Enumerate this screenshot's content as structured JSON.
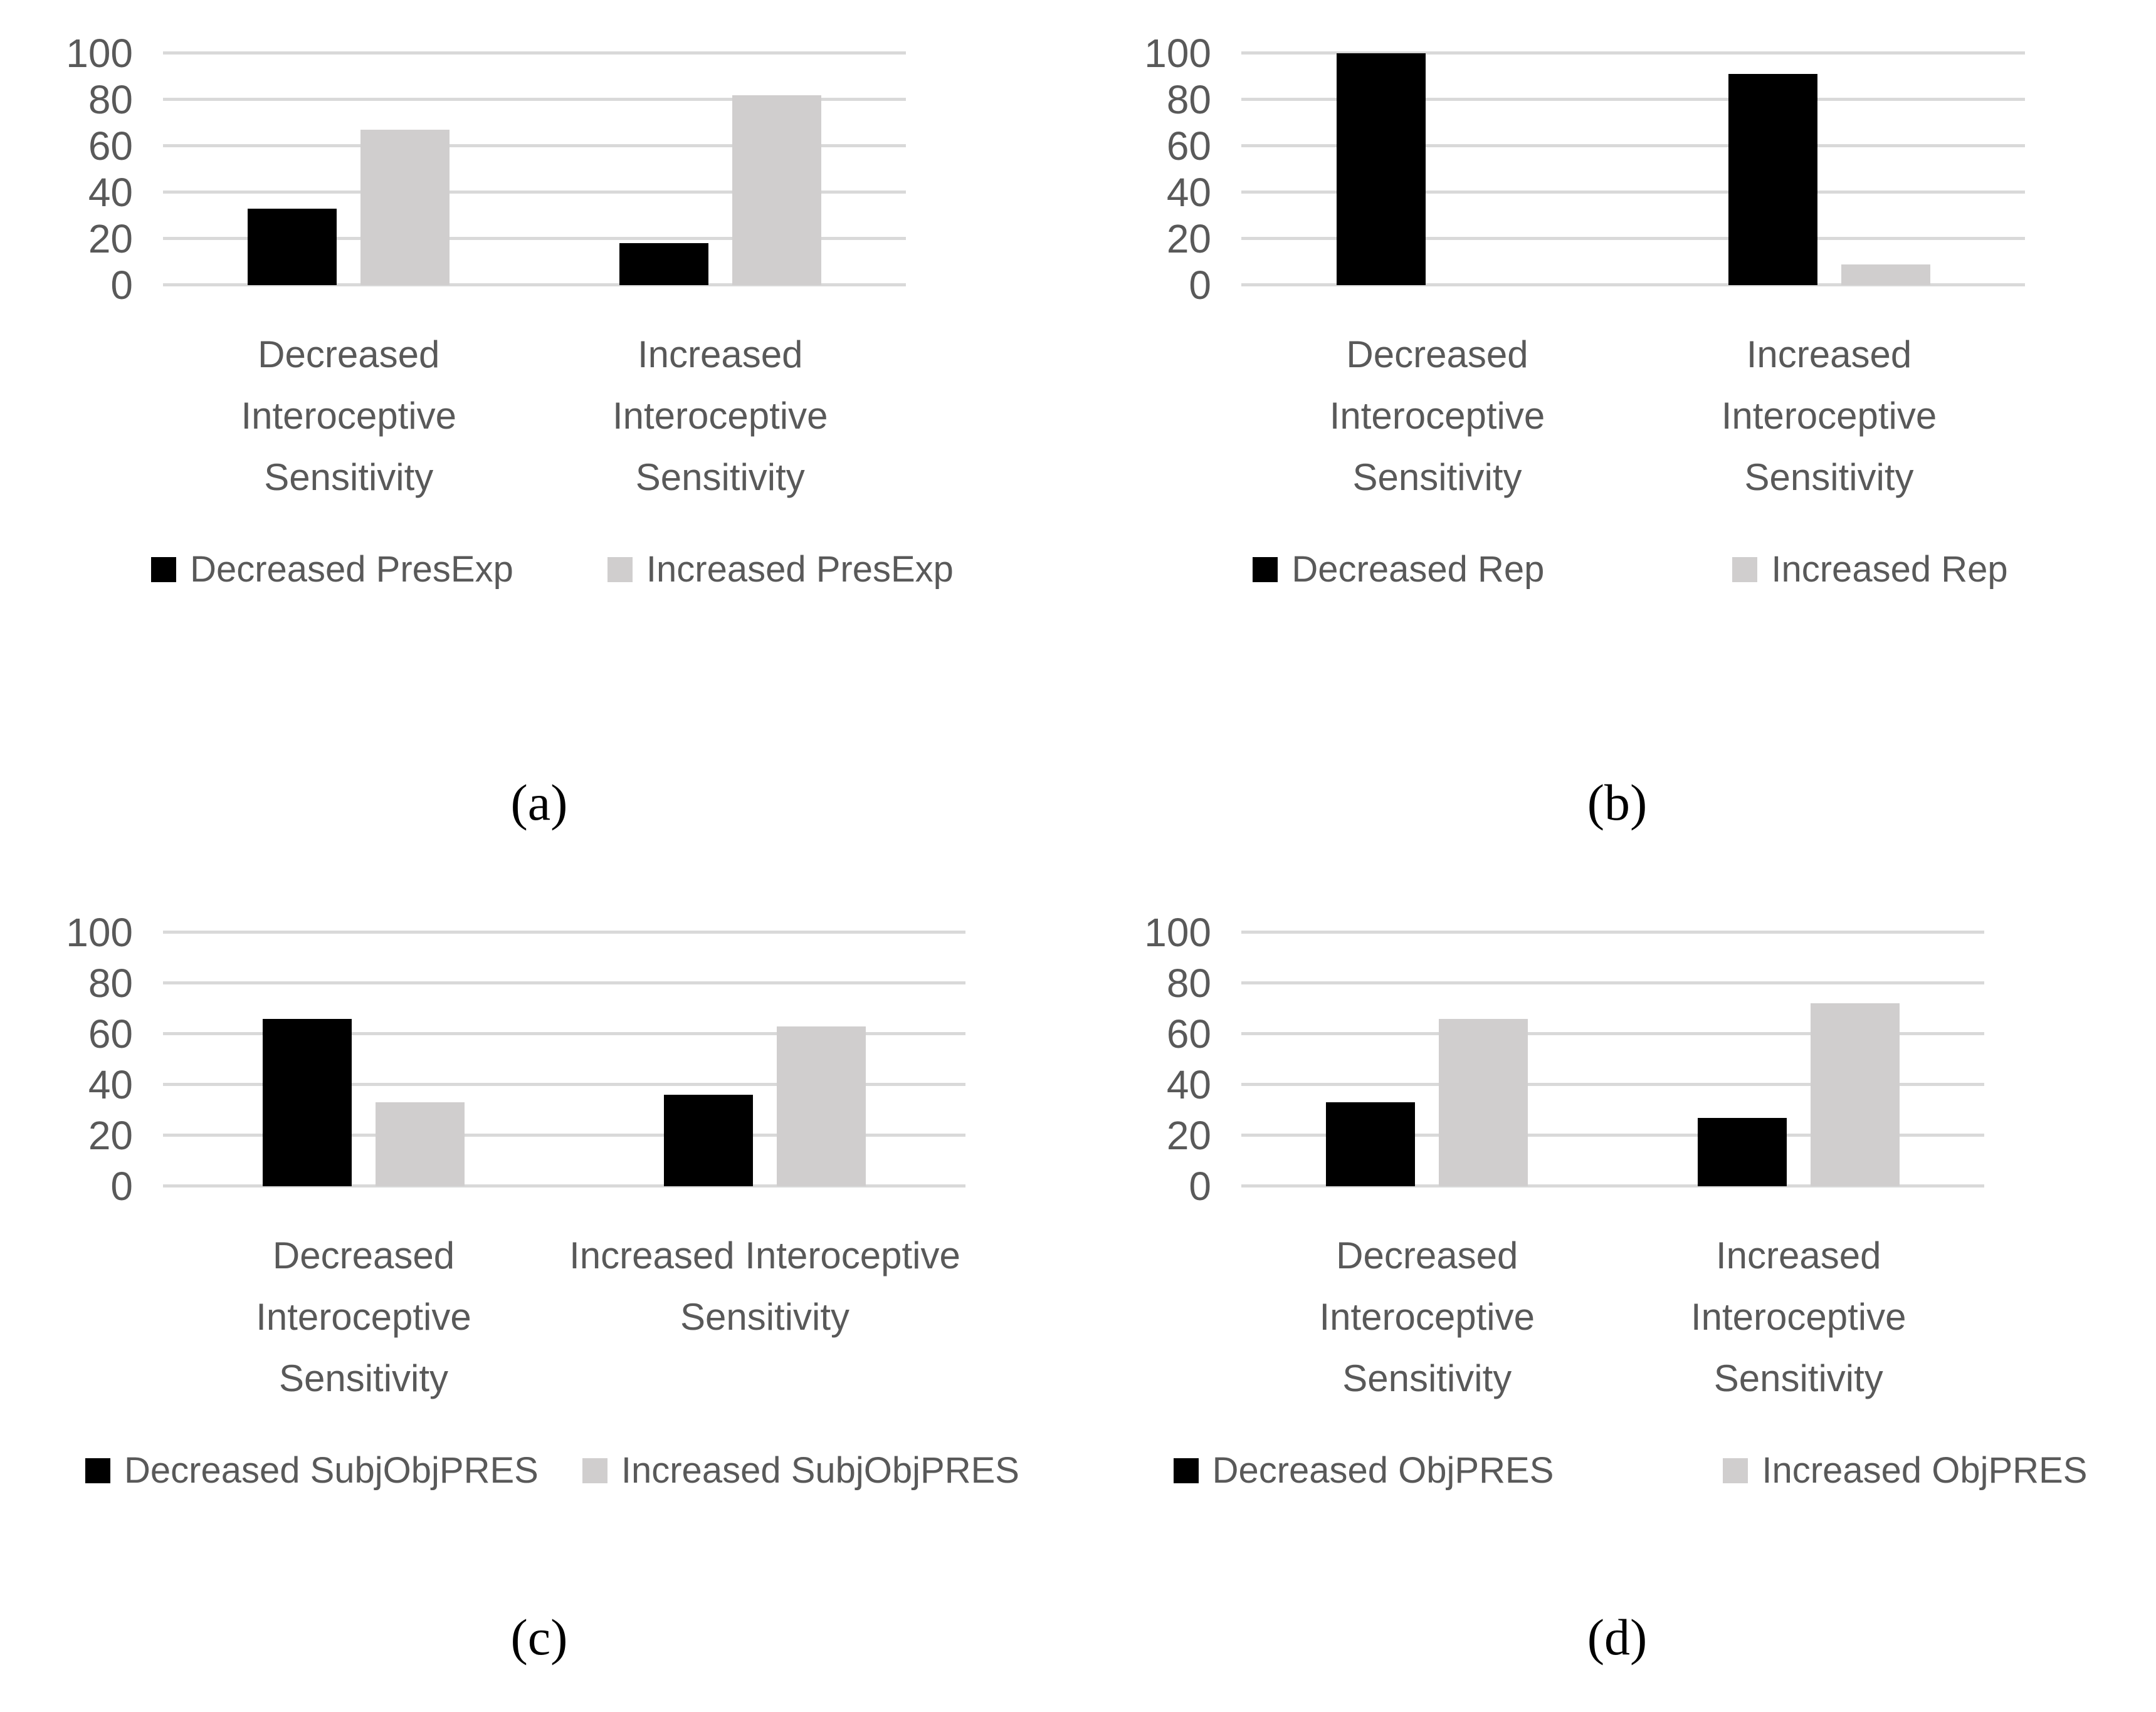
{
  "styles": {
    "text_color": "#595959",
    "gridline_color": "#d9d9d9",
    "bar_black": "#000000",
    "bar_gray": "#d0cece",
    "caption_color": "#000000"
  },
  "chart_data": [
    {
      "id": "a",
      "type": "bar",
      "caption": "(a)",
      "categories": [
        "Decreased Interoceptive Sensitivity",
        "Increased Interoceptive Sensitivity"
      ],
      "series": [
        {
          "name": "Decreased PresExp",
          "color": "#000000",
          "values": [
            33,
            18
          ]
        },
        {
          "name": "Increased PresExp",
          "color": "#d0cece",
          "values": [
            67,
            82
          ]
        }
      ],
      "title": "",
      "xlabel": "",
      "ylabel": "",
      "ylim": [
        0,
        100
      ],
      "yticks": [
        0,
        20,
        40,
        60,
        80,
        100
      ],
      "grid": true,
      "legend_position": "bottom"
    },
    {
      "id": "b",
      "type": "bar",
      "caption": "(b)",
      "categories": [
        "Decreased Interoceptive Sensitivity",
        "Increased Interoceptive Sensitivity"
      ],
      "series": [
        {
          "name": "Decreased Rep",
          "color": "#000000",
          "values": [
            100,
            91
          ]
        },
        {
          "name": "Increased Rep",
          "color": "#d0cece",
          "values": [
            0,
            9
          ]
        }
      ],
      "title": "",
      "xlabel": "",
      "ylabel": "",
      "ylim": [
        0,
        100
      ],
      "yticks": [
        0,
        20,
        40,
        60,
        80,
        100
      ],
      "grid": true,
      "legend_position": "bottom"
    },
    {
      "id": "c",
      "type": "bar",
      "caption": "(c)",
      "categories": [
        "Decreased Interoceptive Sensitivity",
        "Increased Interoceptive Sensitivity"
      ],
      "series": [
        {
          "name": "Decreased SubjObjPRES",
          "color": "#000000",
          "values": [
            66,
            36
          ]
        },
        {
          "name": "Increased SubjObjPRES",
          "color": "#d0cece",
          "values": [
            33,
            63
          ]
        }
      ],
      "title": "",
      "xlabel": "",
      "ylabel": "",
      "ylim": [
        0,
        100
      ],
      "yticks": [
        0,
        20,
        40,
        60,
        80,
        100
      ],
      "grid": true,
      "legend_position": "bottom"
    },
    {
      "id": "d",
      "type": "bar",
      "caption": "(d)",
      "categories": [
        "Decreased Interoceptive Sensitivity",
        "Increased Interoceptive Sensitivity"
      ],
      "series": [
        {
          "name": "Decreased ObjPRES",
          "color": "#000000",
          "values": [
            33,
            27
          ]
        },
        {
          "name": "Increased ObjPRES",
          "color": "#d0cece",
          "values": [
            66,
            72
          ]
        }
      ],
      "title": "",
      "xlabel": "",
      "ylabel": "",
      "ylim": [
        0,
        100
      ],
      "yticks": [
        0,
        20,
        40,
        60,
        80,
        100
      ],
      "grid": true,
      "legend_position": "bottom"
    }
  ]
}
